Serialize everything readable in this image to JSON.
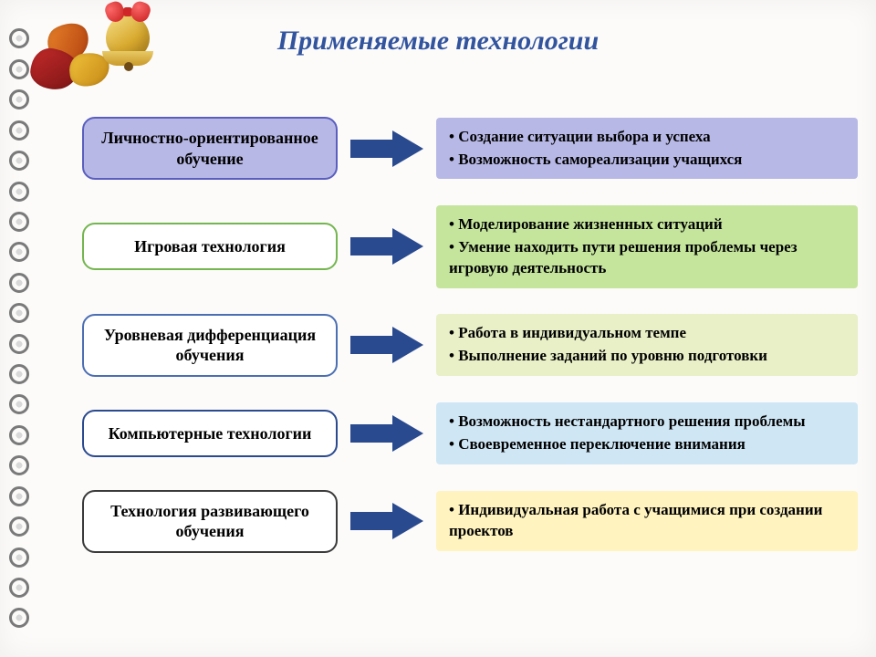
{
  "title": "Применяемые технологии",
  "title_color": "#32549e",
  "title_fontsize": 30,
  "arrow_fill": "#2a4a8f",
  "background_color": "#fcfbfa",
  "rows": [
    {
      "label": "Личностно-ориентированное обучение",
      "left_bg": "#b7b8e6",
      "left_border": "#5a5fbf",
      "right_bg": "#b7b8e6",
      "bullets": [
        "Создание ситуации выбора и успеха",
        "Возможность самореализации учащихся"
      ]
    },
    {
      "label": "Игровая технология",
      "left_bg": "#ffffff",
      "left_border": "#74b64f",
      "right_bg": "#c5e59d",
      "bullets": [
        "Моделирование жизненных ситуаций",
        "Умение находить пути решения проблемы через игровую деятельность"
      ]
    },
    {
      "label": "Уровневая дифференциация обучения",
      "left_bg": "#ffffff",
      "left_border": "#4b6fb3",
      "right_bg": "#e9efc6",
      "bullets": [
        "Работа в индивидуальном темпе",
        "Выполнение заданий по уровню подготовки"
      ]
    },
    {
      "label": "Компьютерные технологии",
      "left_bg": "#ffffff",
      "left_border": "#2a4a8f",
      "right_bg": "#cfe6f5",
      "bullets": [
        "Возможность нестандартного решения проблемы",
        "Своевременное переключение внимания"
      ]
    },
    {
      "label": "Технология развивающего обучения",
      "left_bg": "#ffffff",
      "left_border": "#3a3a3a",
      "right_bg": "#fff3bf",
      "bullets": [
        "Индивидуальная работа с учащимися при создании проектов"
      ]
    }
  ]
}
